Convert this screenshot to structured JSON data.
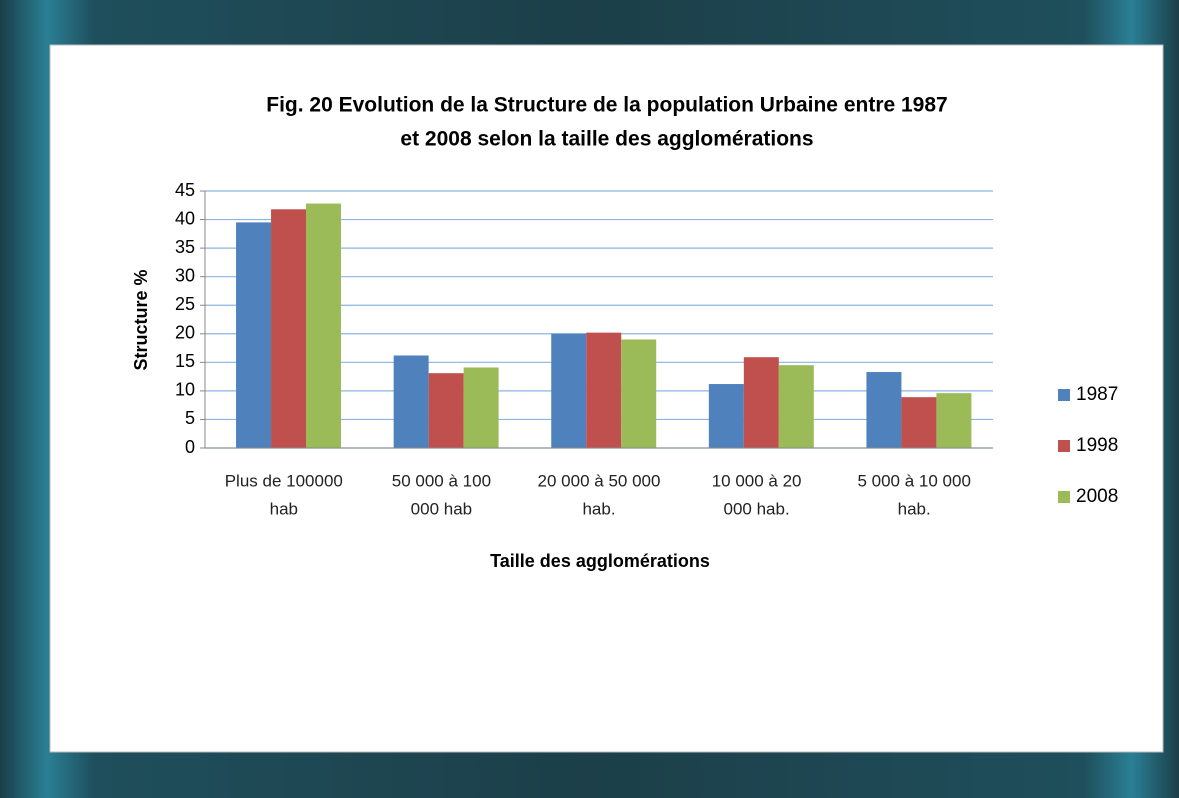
{
  "chart_data": {
    "type": "bar",
    "title": [
      "Fig. 20  Evolution de la Structure de la population Urbaine entre 1987",
      "et 2008 selon la taille des agglomérations"
    ],
    "x_label": "Taille des agglomérations",
    "y_label": "Structure %",
    "categories": [
      [
        "Plus de 100000",
        "hab"
      ],
      [
        "50 000 à 100",
        "000 hab"
      ],
      [
        "20 000 à 50 000",
        "hab."
      ],
      [
        "10 000 à  20",
        "000 hab."
      ],
      [
        "5 000 à 10 000",
        "hab."
      ]
    ],
    "series": [
      {
        "name": "1987",
        "color": "#4f81bd",
        "values": [
          39.5,
          16.2,
          20,
          11.2,
          13.3
        ]
      },
      {
        "name": "1998",
        "color": "#c0504d",
        "values": [
          41.8,
          13.1,
          20.2,
          15.9,
          8.9
        ]
      },
      {
        "name": "2008",
        "color": "#9bbb59",
        "values": [
          42.8,
          14.1,
          19,
          14.5,
          9.6
        ]
      }
    ],
    "ylim": [
      0,
      45
    ],
    "yticks": [
      0,
      5,
      10,
      15,
      20,
      25,
      30,
      35,
      40,
      45
    ],
    "grid": true,
    "legend": "right"
  }
}
